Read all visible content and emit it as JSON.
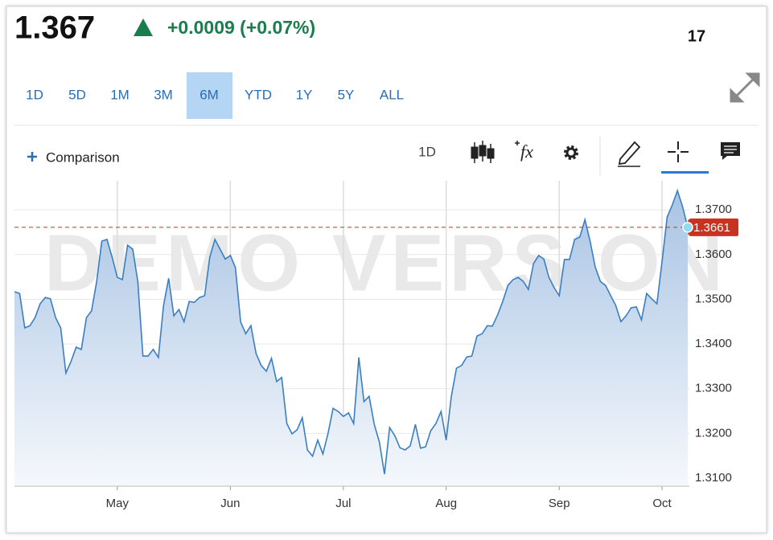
{
  "header": {
    "price": "1.367",
    "change": "+0.0009 (+0.07%)",
    "counter": "17"
  },
  "periods": {
    "items": [
      "1D",
      "5D",
      "1M",
      "3M",
      "6M",
      "YTD",
      "1Y",
      "5Y",
      "ALL"
    ],
    "selected": "6M"
  },
  "toolbar": {
    "comparison": "Comparison",
    "interval": "1D",
    "studies": "fx"
  },
  "chart_data": {
    "type": "area",
    "color": "#3a7fc1",
    "grid": true,
    "watermark": "DEMO VERSION",
    "categories": [
      null,
      null,
      null,
      null,
      null,
      null,
      null,
      null,
      null,
      null,
      null,
      null,
      null,
      null,
      null,
      null,
      null,
      null,
      null,
      null,
      "May",
      null,
      null,
      null,
      null,
      null,
      null,
      null,
      null,
      null,
      null,
      null,
      null,
      null,
      null,
      null,
      null,
      null,
      null,
      null,
      null,
      null,
      "Jun",
      null,
      null,
      null,
      null,
      null,
      null,
      null,
      null,
      null,
      null,
      null,
      null,
      null,
      null,
      null,
      null,
      null,
      null,
      null,
      null,
      null,
      "Jul",
      null,
      null,
      null,
      null,
      null,
      null,
      null,
      null,
      null,
      null,
      null,
      null,
      null,
      null,
      null,
      null,
      null,
      null,
      null,
      "Aug",
      null,
      null,
      null,
      null,
      null,
      null,
      null,
      null,
      null,
      null,
      null,
      null,
      null,
      null,
      null,
      null,
      null,
      null,
      null,
      null,
      null,
      "Sep",
      null,
      null,
      null,
      null,
      null,
      null,
      null,
      null,
      null,
      null,
      null,
      null,
      null,
      null,
      null,
      null,
      null,
      null,
      null,
      "Oct",
      null,
      null,
      null,
      null,
      null
    ],
    "values": [
      1.3517,
      1.3513,
      1.3436,
      1.3441,
      1.3459,
      1.349,
      1.3504,
      1.3501,
      1.3459,
      1.3436,
      1.3335,
      1.3361,
      1.3393,
      1.3388,
      1.3459,
      1.3474,
      1.354,
      1.363,
      1.3634,
      1.3594,
      1.3549,
      1.3544,
      1.3621,
      1.3612,
      1.354,
      1.3373,
      1.3373,
      1.3388,
      1.337,
      1.3486,
      1.3547,
      1.3463,
      1.3477,
      1.345,
      1.3495,
      1.3493,
      1.3504,
      1.3508,
      1.3594,
      1.3634,
      1.3612,
      1.359,
      1.3598,
      1.3571,
      1.345,
      1.3423,
      1.3441,
      1.3379,
      1.3352,
      1.3339,
      1.3368,
      1.3316,
      1.3325,
      1.3222,
      1.3199,
      1.3208,
      1.3235,
      1.3163,
      1.3149,
      1.3185,
      1.3154,
      1.3199,
      1.3256,
      1.3249,
      1.3238,
      1.3246,
      1.3222,
      1.337,
      1.3271,
      1.3283,
      1.322,
      1.3181,
      1.3109,
      1.3213,
      1.3195,
      1.3168,
      1.3163,
      1.3172,
      1.322,
      1.3167,
      1.317,
      1.3206,
      1.3222,
      1.3249,
      1.3185,
      1.3283,
      1.3346,
      1.3352,
      1.3371,
      1.3373,
      1.3418,
      1.3423,
      1.3441,
      1.344,
      1.3465,
      1.3495,
      1.3531,
      1.3544,
      1.3549,
      1.354,
      1.3522,
      1.358,
      1.3598,
      1.359,
      1.3549,
      1.3526,
      1.3508,
      1.3589,
      1.3589,
      1.3634,
      1.3639,
      1.3678,
      1.363,
      1.3572,
      1.354,
      1.3531,
      1.3508,
      1.3486,
      1.345,
      1.3463,
      1.3481,
      1.3483,
      1.3454,
      1.3513,
      1.3501,
      1.349,
      1.3585,
      1.3684,
      1.3711,
      1.3743,
      1.3707,
      1.3661
    ],
    "last_price": 1.3661,
    "last_price_color": "#c8321e",
    "ylim": [
      1.3082,
      1.3765
    ],
    "yticks": [
      {
        "value": 1.31,
        "label": "1.3100"
      },
      {
        "value": 1.32,
        "label": "1.3200"
      },
      {
        "value": 1.33,
        "label": "1.3300"
      },
      {
        "value": 1.34,
        "label": "1.3400"
      },
      {
        "value": 1.35,
        "label": "1.3500"
      },
      {
        "value": 1.36,
        "label": "1.3600"
      },
      {
        "value": 1.37,
        "label": "1.3700"
      }
    ]
  }
}
